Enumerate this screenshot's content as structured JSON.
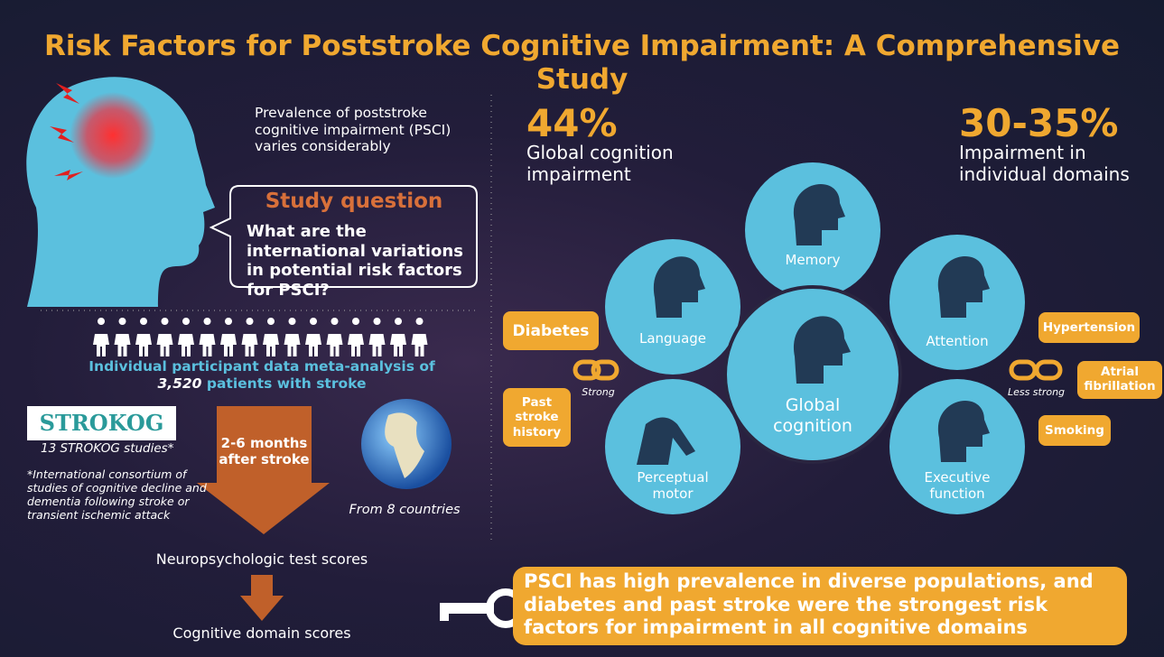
{
  "title": "Risk Factors for Poststroke Cognitive Impairment: A Comprehensive Study",
  "prevalence": "Prevalence of poststroke cognitive impairment (PSCI) varies considerably",
  "study_question": {
    "heading": "Study question",
    "text": "What are the international variations in potential risk factors for PSCI?"
  },
  "meta_analysis": {
    "line1": "Individual participant data meta-analysis of",
    "count": "3,520",
    "line2": "patients with stroke"
  },
  "strokog": {
    "logo": "STROKOG",
    "studies": "13 STROKOG studies*",
    "footnote": "*International consortium of studies of cognitive decline and dementia following stroke or transient ischemic attack"
  },
  "timing": "2-6 months after stroke",
  "countries": "From 8 countries",
  "flow": [
    "Neuropsychologic test scores",
    "Cognitive domain scores"
  ],
  "stats": [
    {
      "value": "44%",
      "label": "Global cognition impairment"
    },
    {
      "value": "30-35%",
      "label": "Impairment in individual domains"
    }
  ],
  "domains": [
    "Memory",
    "Language",
    "Attention",
    "Global cognition",
    "Perceptual motor",
    "Executive function"
  ],
  "strong_factors": [
    "Diabetes",
    "Past stroke history"
  ],
  "strong_label": "Strong",
  "less_strong_factors": [
    "Hypertension",
    "Atrial fibrillation",
    "Smoking"
  ],
  "less_strong_label": "Less strong",
  "conclusion": "PSCI has high prevalence in diverse populations, and diabetes and past stroke were the strongest risk factors for impairment in all cognitive domains"
}
